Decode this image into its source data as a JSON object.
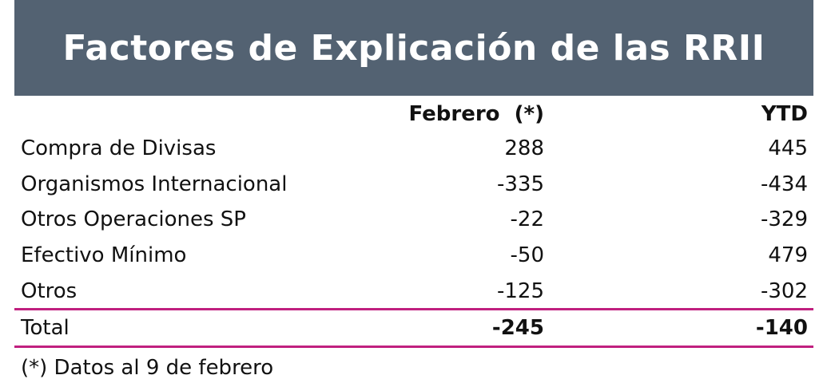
{
  "header": {
    "title": "Factores de Explicación de las RRII"
  },
  "table": {
    "columns": [
      "Febrero  (*)",
      "YTD"
    ],
    "rows": [
      [
        "Compra de Divisas",
        "288",
        "445"
      ],
      [
        "Organismos Internacional",
        "-335",
        "-434"
      ],
      [
        "Otros Operaciones SP",
        "-22",
        "-329"
      ],
      [
        "Efectivo Mínimo",
        "-50",
        "479"
      ],
      [
        "Otros",
        "-125",
        "-302"
      ]
    ],
    "total": [
      "Total",
      "-245",
      "-140"
    ]
  },
  "footnote": "(*) Datos al 9 de febrero"
}
